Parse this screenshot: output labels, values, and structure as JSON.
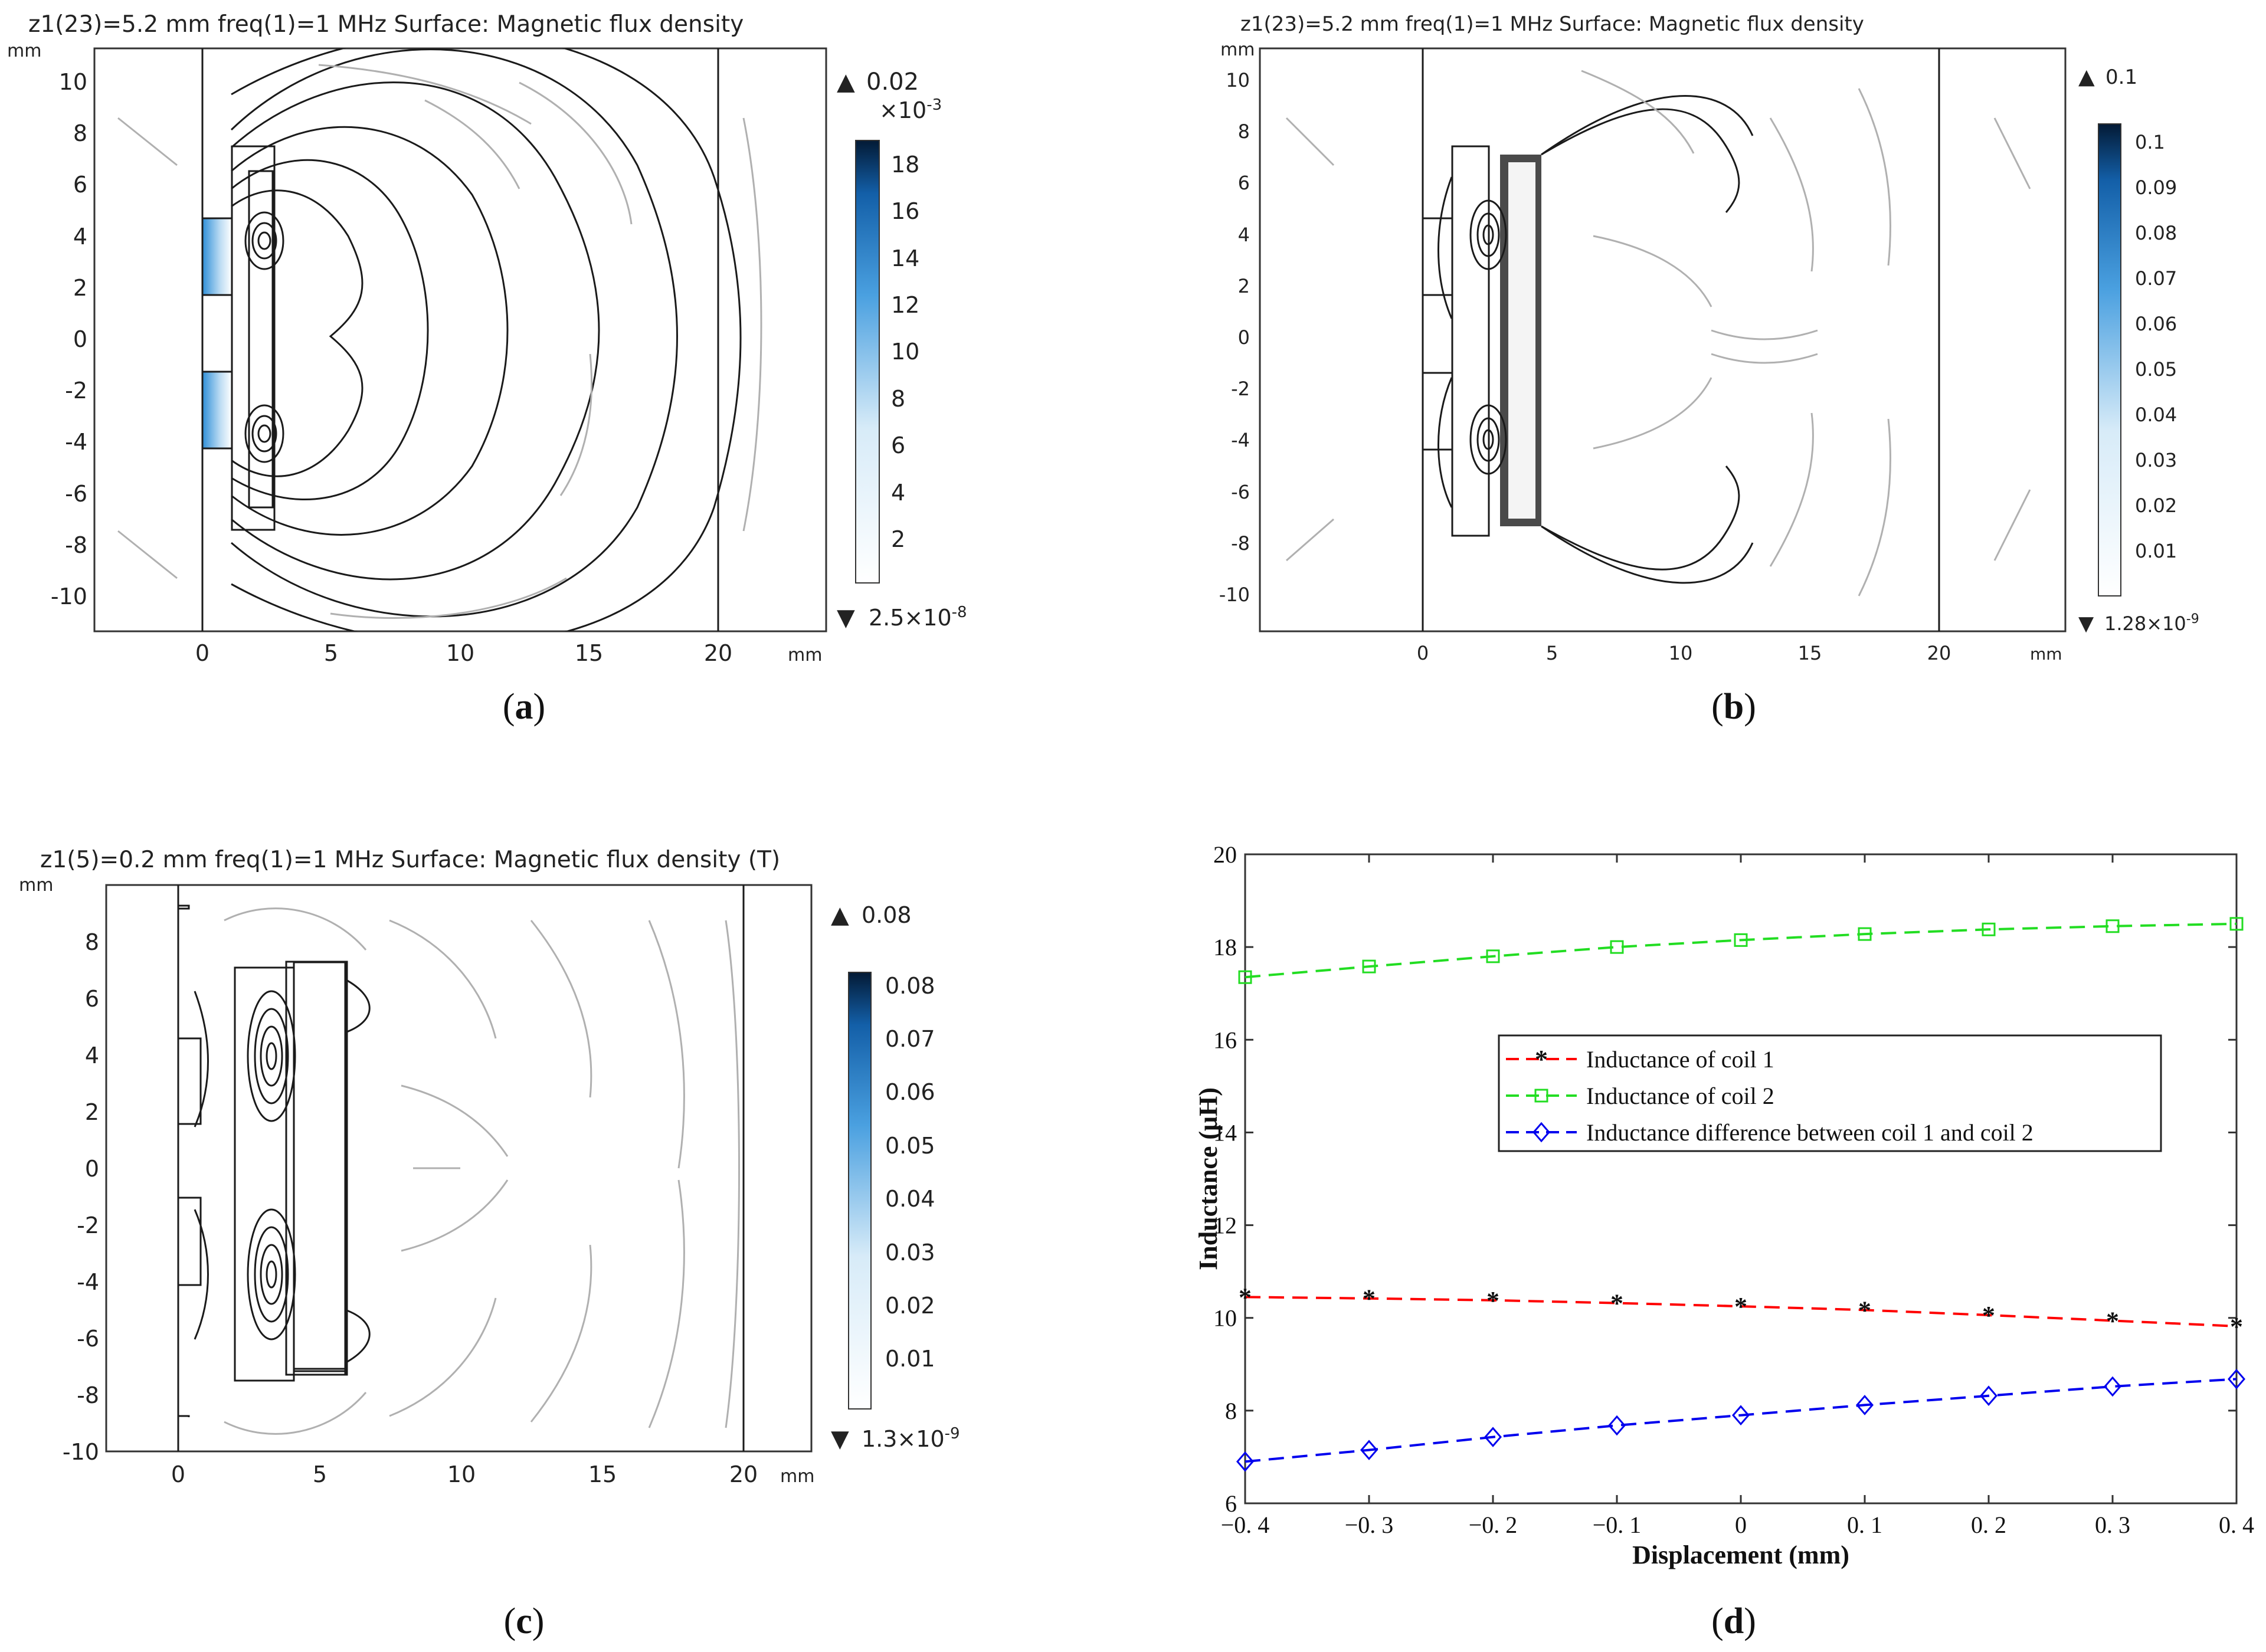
{
  "colors": {
    "field_dark": "#0b2b55",
    "field_mid": "#2f8fd8",
    "field_light": "#cfe6f7",
    "contour_dark": "#1a1a1a",
    "contour_light": "#a8a8a8",
    "coil1": "#ff0000",
    "coil2": "#22dd22",
    "diff": "#0000ee"
  },
  "panels": {
    "a": {
      "caption_letter": "a",
      "title": "z1(23)=5.2 mm freq(1)=1 MHz Surface: Magnetic flux density",
      "y_unit": "mm",
      "x_unit": "mm",
      "x_ticks": [
        "0",
        "5",
        "10",
        "15",
        "20"
      ],
      "y_ticks": [
        "10",
        "8",
        "6",
        "4",
        "2",
        "0",
        "-2",
        "-4",
        "-6",
        "-8",
        "-10"
      ],
      "max_label": "0.02",
      "scale_label": "×10",
      "scale_exp": "-3",
      "colorbar_ticks": [
        "18",
        "16",
        "14",
        "12",
        "10",
        "8",
        "6",
        "4",
        "2"
      ],
      "min_label": "2.5×10",
      "min_exp": "-8"
    },
    "b": {
      "caption_letter": "b",
      "title": "z1(23)=5.2 mm freq(1)=1 MHz  Surface: Magnetic flux density",
      "y_unit": "mm",
      "x_unit": "mm",
      "x_ticks": [
        "0",
        "5",
        "10",
        "15",
        "20"
      ],
      "y_ticks": [
        "10",
        "8",
        "6",
        "4",
        "2",
        "0",
        "-2",
        "-4",
        "-6",
        "-8",
        "-10"
      ],
      "max_label": "0.1",
      "colorbar_ticks": [
        "0.1",
        "0.09",
        "0.08",
        "0.07",
        "0.06",
        "0.05",
        "0.04",
        "0.03",
        "0.02",
        "0.01"
      ],
      "min_label": "1.28×10",
      "min_exp": "-9"
    },
    "c": {
      "caption_letter": "c",
      "title": "z1(5)=0.2 mm freq(1)=1 MHz Surface: Magnetic flux density (T)",
      "y_unit": "mm",
      "x_unit": "mm",
      "x_ticks": [
        "0",
        "5",
        "10",
        "15",
        "20"
      ],
      "y_ticks": [
        "8",
        "6",
        "4",
        "2",
        "0",
        "-2",
        "-4",
        "-6",
        "-8",
        "-10"
      ],
      "max_label": "0.08",
      "colorbar_ticks": [
        "0.08",
        "0.07",
        "0.06",
        "0.05",
        "0.04",
        "0.03",
        "0.02",
        "0.01"
      ],
      "min_label": "1.3×10",
      "min_exp": "-9"
    },
    "d": {
      "caption_letter": "d"
    }
  },
  "chart_data": {
    "type": "line",
    "title": "",
    "xlabel": "Displacement (mm)",
    "ylabel": "Inductance (μH)",
    "x": [
      -0.4,
      -0.3,
      -0.2,
      -0.1,
      0,
      0.1,
      0.2,
      0.3,
      0.4
    ],
    "x_tick_labels": [
      "−0. 4",
      "−0. 3",
      "−0. 2",
      "−0. 1",
      "0",
      "0. 1",
      "0. 2",
      "0. 3",
      "0. 4"
    ],
    "y_ticks": [
      "20",
      "18",
      "16",
      "14",
      "12",
      "10",
      "8",
      "6"
    ],
    "xlim": [
      -0.4,
      0.4
    ],
    "ylim": [
      6,
      20
    ],
    "legend_position": "center-right",
    "series": [
      {
        "name": "Inductance of coil 1",
        "marker": "asterisk",
        "color": "#ff0000",
        "values": [
          10.45,
          10.42,
          10.38,
          10.32,
          10.25,
          10.17,
          10.06,
          9.94,
          9.82
        ]
      },
      {
        "name": "Inductance of coil 2",
        "marker": "square",
        "color": "#22dd22",
        "values": [
          17.35,
          17.58,
          17.8,
          18.0,
          18.15,
          18.28,
          18.38,
          18.45,
          18.5
        ]
      },
      {
        "name": "Inductance difference between coil 1 and coil 2",
        "marker": "diamond",
        "color": "#0000ee",
        "values": [
          6.9,
          7.15,
          7.43,
          7.68,
          7.9,
          8.12,
          8.32,
          8.52,
          8.68
        ]
      }
    ]
  }
}
